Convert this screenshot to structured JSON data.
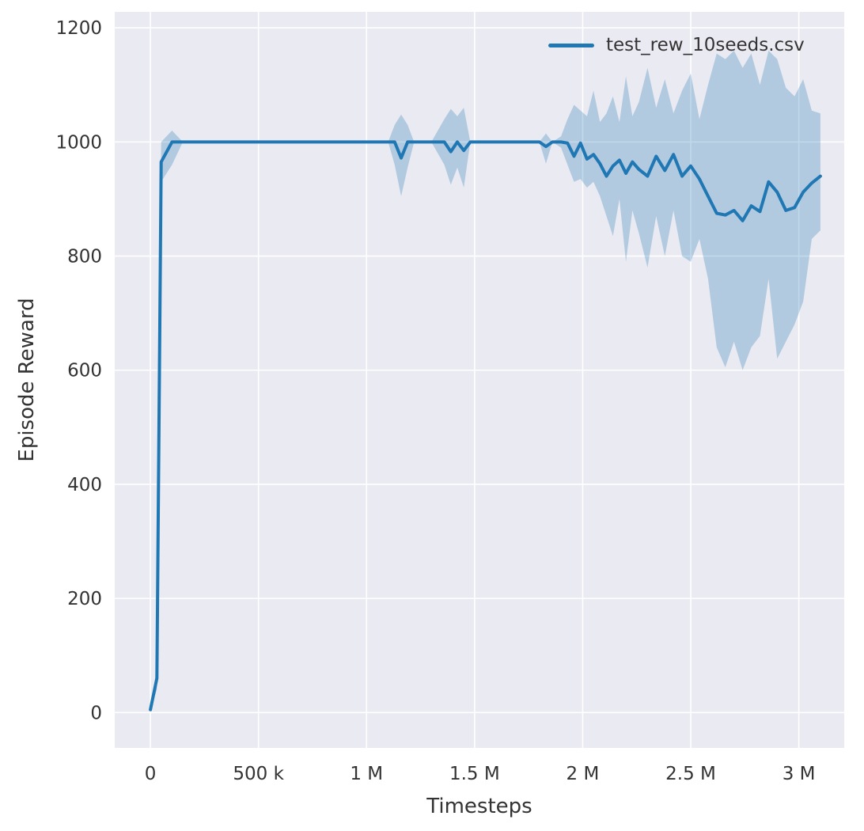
{
  "figure": {
    "background": "#ffffff",
    "plot_background": "#eaeaf2",
    "grid_color": "#ffffff",
    "text_color": "#333333"
  },
  "chart_data": {
    "type": "line",
    "title": "",
    "xlabel": "Timesteps",
    "ylabel": "Episode Reward",
    "x_unit": "timesteps (millions)",
    "grid": true,
    "legend_position": "upper right",
    "line_color": "#1f77b4",
    "band_color": "#1f77b4",
    "band_opacity": 0.28,
    "xlim": [
      -0.165,
      3.21
    ],
    "ylim": [
      -62,
      1228
    ],
    "xticks": {
      "values": [
        0,
        0.5,
        1.0,
        1.5,
        2.0,
        2.5,
        3.0
      ],
      "labels": [
        "0",
        "500 k",
        "1 M",
        "1.5 M",
        "2 M",
        "2.5 M",
        "3 M"
      ]
    },
    "yticks": {
      "values": [
        0,
        200,
        400,
        600,
        800,
        1000,
        1200
      ],
      "labels": [
        "0",
        "200",
        "400",
        "600",
        "800",
        "1000",
        "1200"
      ]
    },
    "series": [
      {
        "name": "test_rew_10seeds.csv",
        "x": [
          0.0,
          0.03,
          0.05,
          0.1,
          0.15,
          0.3,
          0.5,
          0.7,
          0.9,
          1.05,
          1.1,
          1.13,
          1.16,
          1.19,
          1.22,
          1.3,
          1.36,
          1.39,
          1.42,
          1.45,
          1.48,
          1.55,
          1.65,
          1.75,
          1.8,
          1.83,
          1.86,
          1.9,
          1.93,
          1.96,
          1.99,
          2.02,
          2.05,
          2.08,
          2.11,
          2.14,
          2.17,
          2.2,
          2.23,
          2.26,
          2.3,
          2.34,
          2.38,
          2.42,
          2.46,
          2.5,
          2.54,
          2.58,
          2.62,
          2.66,
          2.7,
          2.74,
          2.78,
          2.82,
          2.86,
          2.9,
          2.94,
          2.98,
          3.02,
          3.06,
          3.1
        ],
        "mean": [
          5,
          60,
          965,
          1000,
          1000,
          1000,
          1000,
          1000,
          1000,
          1000,
          1000,
          1000,
          972,
          1000,
          1000,
          1000,
          1000,
          983,
          1000,
          985,
          1000,
          1000,
          1000,
          1000,
          1000,
          992,
          1000,
          1000,
          998,
          975,
          998,
          970,
          978,
          962,
          940,
          958,
          968,
          945,
          965,
          952,
          940,
          975,
          950,
          978,
          940,
          958,
          935,
          905,
          875,
          872,
          880,
          862,
          888,
          878,
          930,
          912,
          880,
          885,
          912,
          928,
          940
        ],
        "lo": [
          5,
          40,
          930,
          960,
          1000,
          1000,
          1000,
          1000,
          1000,
          1000,
          1000,
          960,
          905,
          955,
          1000,
          1000,
          960,
          925,
          955,
          920,
          1000,
          1000,
          1000,
          1000,
          1000,
          962,
          1000,
          990,
          960,
          930,
          935,
          920,
          930,
          905,
          870,
          835,
          900,
          790,
          880,
          840,
          780,
          870,
          800,
          880,
          800,
          790,
          830,
          760,
          640,
          605,
          650,
          600,
          640,
          660,
          760,
          620,
          650,
          680,
          720,
          830,
          845
        ],
        "hi": [
          5,
          80,
          1000,
          1020,
          1000,
          1000,
          1000,
          1000,
          1000,
          1000,
          1000,
          1030,
          1048,
          1030,
          1000,
          1000,
          1040,
          1058,
          1045,
          1060,
          1000,
          1000,
          1000,
          1000,
          1000,
          1015,
          1000,
          1010,
          1040,
          1065,
          1055,
          1045,
          1090,
          1035,
          1050,
          1080,
          1035,
          1115,
          1045,
          1070,
          1130,
          1060,
          1110,
          1050,
          1090,
          1120,
          1040,
          1100,
          1155,
          1145,
          1160,
          1130,
          1155,
          1100,
          1160,
          1145,
          1095,
          1080,
          1110,
          1055,
          1050
        ]
      }
    ]
  }
}
